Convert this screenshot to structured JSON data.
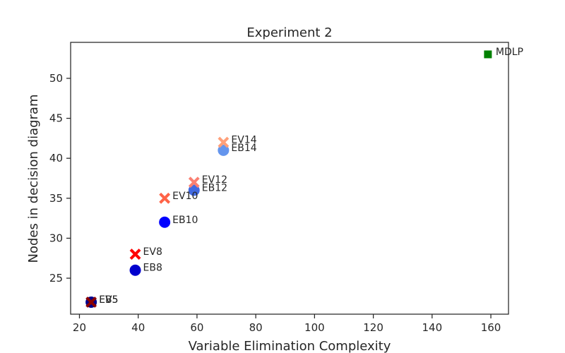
{
  "chart_data": {
    "type": "scatter",
    "title": "Experiment 2",
    "xlabel": "Variable Elimination Complexity",
    "ylabel": "Nodes in decision diagram",
    "xlim": [
      17,
      166
    ],
    "ylim": [
      20.5,
      54.5
    ],
    "xticks": [
      20,
      40,
      60,
      80,
      100,
      120,
      140,
      160
    ],
    "yticks": [
      25,
      30,
      35,
      40,
      45,
      50
    ],
    "grid": false,
    "legend": "none",
    "points": [
      {
        "label": "EB5",
        "x": 24,
        "y": 22,
        "marker": "circle",
        "color": "#00008b"
      },
      {
        "label": "EV5",
        "x": 24,
        "y": 22,
        "marker": "x",
        "color": "#8b0000"
      },
      {
        "label": "EB8",
        "x": 39,
        "y": 26,
        "marker": "circle",
        "color": "#0000cd"
      },
      {
        "label": "EV8",
        "x": 39,
        "y": 28,
        "marker": "x",
        "color": "#ff0000"
      },
      {
        "label": "EB10",
        "x": 49,
        "y": 32,
        "marker": "circle",
        "color": "#0000ff"
      },
      {
        "label": "EV10",
        "x": 49,
        "y": 35,
        "marker": "x",
        "color": "#ff6347"
      },
      {
        "label": "EB12",
        "x": 59,
        "y": 36,
        "marker": "circle",
        "color": "#4169e1"
      },
      {
        "label": "EV12",
        "x": 59,
        "y": 37,
        "marker": "x",
        "color": "#fa8072"
      },
      {
        "label": "EB14",
        "x": 69,
        "y": 41,
        "marker": "circle",
        "color": "#6495ed"
      },
      {
        "label": "EV14",
        "x": 69,
        "y": 42,
        "marker": "x",
        "color": "#ffa07a"
      },
      {
        "label": "MDLP",
        "x": 159,
        "y": 53,
        "marker": "square",
        "color": "#008000"
      }
    ]
  }
}
